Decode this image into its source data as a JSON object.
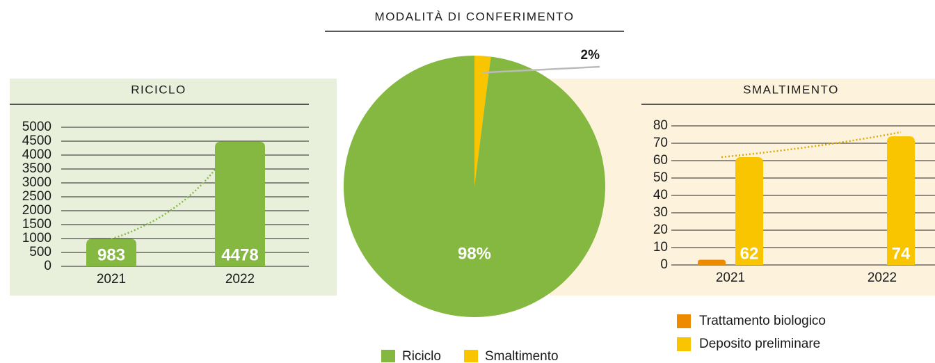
{
  "chart_data": [
    {
      "type": "pie",
      "title": "MODALITÀ DI CONFERIMENTO",
      "categories": [
        "Riciclo",
        "Smaltimento"
      ],
      "values": [
        98,
        2
      ],
      "value_labels": [
        "98%",
        "2%"
      ],
      "colors": [
        "#85b840",
        "#f8c500"
      ]
    },
    {
      "type": "bar",
      "title": "RICICLO",
      "categories": [
        "2021",
        "2022"
      ],
      "series": [
        {
          "name": null,
          "color": "#85b840",
          "values": [
            983,
            4478
          ]
        }
      ],
      "ylim": [
        0,
        5000
      ],
      "yticks": [
        0,
        500,
        1000,
        1500,
        2000,
        2500,
        3000,
        3500,
        4000,
        4500,
        5000
      ],
      "grid": true
    },
    {
      "type": "bar",
      "title": "SMALTIMENTO",
      "categories": [
        "2021",
        "2022"
      ],
      "series": [
        {
          "name": "Trattamento biologico",
          "color": "#ee8a00",
          "values": [
            3,
            null
          ]
        },
        {
          "name": "Deposito preliminare",
          "color": "#f8c500",
          "values": [
            62,
            74
          ]
        }
      ],
      "ylim": [
        0,
        80
      ],
      "yticks": [
        0,
        10,
        20,
        30,
        40,
        50,
        60,
        70,
        80
      ],
      "grid": true
    }
  ]
}
